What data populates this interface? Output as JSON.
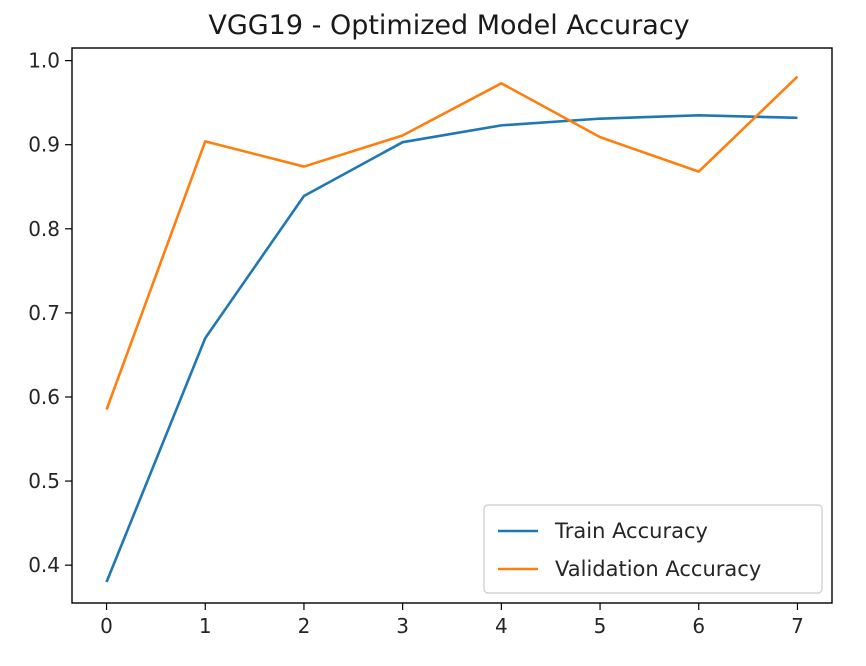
{
  "chart_data": {
    "type": "line",
    "title": "VGG19 - Optimized Model Accuracy",
    "xlabel": "",
    "ylabel": "",
    "x": [
      0,
      1,
      2,
      3,
      4,
      5,
      6,
      7
    ],
    "xlim": [
      -0.35,
      7.35
    ],
    "ylim": [
      0.355,
      1.015
    ],
    "x_ticks": [
      0,
      1,
      2,
      3,
      4,
      5,
      6,
      7
    ],
    "y_ticks": [
      0.4,
      0.5,
      0.6,
      0.7,
      0.8,
      0.9,
      1.0
    ],
    "y_tick_labels": [
      "0.4",
      "0.5",
      "0.6",
      "0.7",
      "0.8",
      "0.9",
      "1.0"
    ],
    "grid": false,
    "legend_position": "lower-right",
    "series": [
      {
        "name": "Train Accuracy",
        "color": "#1f77b4",
        "values": [
          0.38,
          0.67,
          0.839,
          0.903,
          0.923,
          0.931,
          0.935,
          0.932
        ]
      },
      {
        "name": "Validation Accuracy",
        "color": "#ff7f0e",
        "values": [
          0.585,
          0.904,
          0.874,
          0.911,
          0.973,
          0.909,
          0.868,
          0.981
        ]
      }
    ]
  }
}
